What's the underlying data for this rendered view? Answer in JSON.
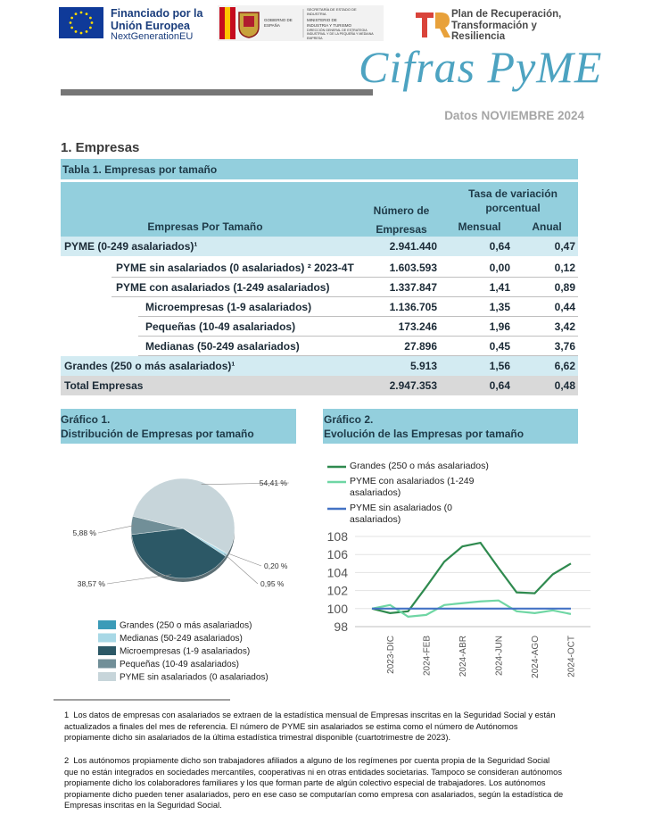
{
  "header": {
    "eu_funding": "Financiado por la Unión Europea",
    "eu_program": "NextGenerationEU",
    "gov_secretaria": "SECRETARÍA DE ESTADO DE INDUSTRIA",
    "gov_gobierno": "GOBIERNO DE ESPAÑA",
    "gov_ministerio": "MINISTERIO DE INDUSTRIA Y TURISMO",
    "gov_direccion": "DIRECCIÓN GENERAL DE ESTRATEGIA INDUSTRIAL Y DE LA PEQUEÑA Y MEDIANA EMPRESA",
    "plan": "Plan de Recuperación, Transformación y Resiliencia",
    "title": "Cifras PyME",
    "subtitle": "Datos NOVIEMBRE 2024"
  },
  "section": "1. Empresas",
  "table": {
    "title": "Tabla 1. Empresas por tamaño",
    "headers": {
      "size": "Empresas Por Tamaño",
      "number": "Número de Empresas",
      "rate": "Tasa de variación porcentual",
      "monthly": "Mensual",
      "annual": "Anual"
    },
    "rows": [
      [
        "PYME (0-249 asalariados)¹",
        "2.941.440",
        "0,64",
        "0,47"
      ],
      [
        "PYME sin asalariados (0 asalariados) ² 2023-4T",
        "1.603.593",
        "0,00",
        "0,12"
      ],
      [
        "PYME con asalariados (1-249 asalariados)",
        "1.337.847",
        "1,41",
        "0,89"
      ],
      [
        "Microempresas (1-9 asalariados)",
        "1.136.705",
        "1,35",
        "0,44"
      ],
      [
        "Pequeñas (10-49 asalariados)",
        "173.246",
        "1,96",
        "3,42"
      ],
      [
        "Medianas (50-249 asalariados)",
        "27.896",
        "0,45",
        "3,76"
      ],
      [
        "Grandes (250 o más asalariados)¹",
        "5.913",
        "1,56",
        "6,62"
      ],
      [
        "Total Empresas",
        "2.947.353",
        "0,64",
        "0,48"
      ]
    ]
  },
  "chart_data": [
    {
      "type": "pie",
      "label": "Gráfico 1.",
      "title": "Distribución de Empresas por tamaño",
      "categories": [
        "Grandes (250 o más asalariados)",
        "Medianas (50-249 asalariados)",
        "Microempresas (1-9 asalariados)",
        "Pequeñas (10-49 asalariados)",
        "PYME sin asalariados (0 asalariados)"
      ],
      "values": [
        0.2,
        0.95,
        38.57,
        5.88,
        54.41
      ],
      "value_labels": [
        "0,20 %",
        "0,95 %",
        "38,57 %",
        "5,88 %",
        "54,41 %"
      ],
      "colors": [
        "#3b9bb8",
        "#a8d8e6",
        "#2c5866",
        "#718f98",
        "#c7d5da"
      ],
      "legend": "bottom"
    },
    {
      "type": "line",
      "label": "Gráfico 2.",
      "title": "Evolución de las Empresas por tamaño",
      "categories": [
        null,
        "2023-DIC",
        null,
        "2024-FEB",
        null,
        "2024-ABR",
        null,
        "2024-JUN",
        null,
        "2024-AGO",
        null,
        "2024-OCT"
      ],
      "series": [
        {
          "name": "Grandes (250 o más asalariados)",
          "color": "#2f8a4f",
          "values": [
            100,
            99.5,
            99.7,
            102.4,
            105.2,
            106.9,
            107.3,
            104.5,
            101.8,
            101.7,
            103.8,
            105.0
          ]
        },
        {
          "name": "PYME con asalariados (1-249 asalariados)",
          "color": "#6fd6a4",
          "values": [
            100,
            100.4,
            99.1,
            99.3,
            100.4,
            100.6,
            100.8,
            100.9,
            99.7,
            99.5,
            99.8,
            99.4
          ]
        },
        {
          "name": "PYME sin asalariados (0 asalariados)",
          "color": "#4472c4",
          "values": [
            100,
            100,
            100,
            100,
            100,
            100,
            100,
            100,
            100,
            100,
            100,
            100
          ]
        }
      ],
      "ylim": [
        98,
        108
      ],
      "yticks": [
        98,
        100,
        102,
        104,
        106,
        108
      ],
      "grid": true,
      "legend": "top"
    }
  ],
  "footnotes": [
    {
      "number": "1",
      "text": "Los datos de empresas con asalariados se extraen de la estadística mensual de Empresas inscritas en la Seguridad Social y están actualizados a finales del mes de referencia. El número de PYME sin asalariados se estima como el número de Autónomos propiamente dicho sin asalariados de la última estadística trimestral disponible (cuartotrimestre de 2023)."
    },
    {
      "number": "2",
      "text": "Los autónomos propiamente dicho son trabajadores afiliados a alguno de los regímenes por cuenta propia de la Seguridad Social que no están integrados en sociedades mercantiles, cooperativas ni en otras entidades societarias. Tampoco se consideran autónomos propiamente dicho los colaboradores familiares y los que forman parte de algún colectivo especial de trabajadores. Los autónomos propiamente dicho pueden tener asalariados, pero en ese caso se computarían como empresa con asalariados, según la estadística de Empresas inscritas en la Seguridad Social."
    }
  ]
}
